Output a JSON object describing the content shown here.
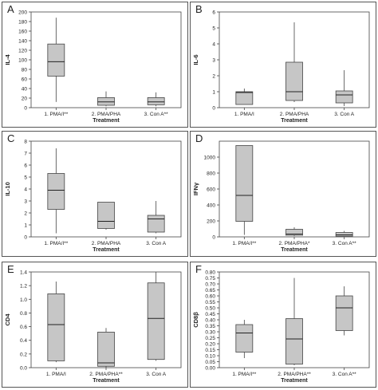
{
  "chart_data": [
    {
      "type": "box",
      "panel_label": "A",
      "ylabel": "IL-4",
      "xlabel": "Treatment",
      "ylim": [
        0,
        200
      ],
      "yticks": [
        0,
        20,
        40,
        60,
        80,
        100,
        120,
        140,
        160,
        180,
        200
      ],
      "categories": [
        "1. PMA/I**",
        "2. PMA/PHA",
        "3. Con A**"
      ],
      "boxes": [
        {
          "min": 12,
          "q1": 66,
          "median": 96,
          "q3": 133,
          "max": 188
        },
        {
          "min": 3,
          "q1": 5,
          "median": 12,
          "q3": 21,
          "max": 34
        },
        {
          "min": 3,
          "q1": 6,
          "median": 12,
          "q3": 21,
          "max": 32
        }
      ]
    },
    {
      "type": "box",
      "panel_label": "B",
      "ylabel": "IL-6",
      "xlabel": "Treatment",
      "ylim": [
        0,
        6
      ],
      "yticks": [
        0,
        1,
        2,
        3,
        4,
        5,
        6
      ],
      "categories": [
        "1. PMA/I",
        "2. PMA/PHA",
        "3. Con A"
      ],
      "boxes": [
        {
          "min": 0.2,
          "q1": 0.2,
          "median": 0.95,
          "q3": 1.0,
          "max": 1.2
        },
        {
          "min": 0.35,
          "q1": 0.45,
          "median": 1.0,
          "q3": 2.85,
          "max": 5.35
        },
        {
          "min": 0.1,
          "q1": 0.3,
          "median": 0.8,
          "q3": 1.05,
          "max": 2.35
        }
      ]
    },
    {
      "type": "box",
      "panel_label": "C",
      "ylabel": "IL-10",
      "xlabel": "Treatment",
      "ylim": [
        0,
        8
      ],
      "yticks": [
        0,
        1,
        2,
        3,
        4,
        5,
        6,
        7,
        8
      ],
      "categories": [
        "1. PMA/I**",
        "2. PMA/PHA",
        "3. Con A"
      ],
      "boxes": [
        {
          "min": 0.3,
          "q1": 2.3,
          "median": 3.9,
          "q3": 5.3,
          "max": 7.4
        },
        {
          "min": 0.6,
          "q1": 0.7,
          "median": 1.3,
          "q3": 2.9,
          "max": 2.9
        },
        {
          "min": 0.3,
          "q1": 0.4,
          "median": 1.5,
          "q3": 1.8,
          "max": 3.0
        }
      ]
    },
    {
      "type": "box",
      "panel_label": "D",
      "ylabel": "IFNγ",
      "xlabel": "Treatment",
      "ylim": [
        0,
        1200
      ],
      "yticks": [
        0,
        200,
        400,
        600,
        800,
        1000
      ],
      "categories": [
        "1. PMA/I**",
        "2. PMA/PHA*",
        "3. Con A**"
      ],
      "boxes": [
        {
          "min": 25,
          "q1": 195,
          "median": 520,
          "q3": 1145,
          "max": 1145
        },
        {
          "min": 10,
          "q1": 20,
          "median": 35,
          "q3": 95,
          "max": 120
        },
        {
          "min": 5,
          "q1": 8,
          "median": 25,
          "q3": 55,
          "max": 75
        }
      ]
    },
    {
      "type": "box",
      "panel_label": "E",
      "ylabel": "CD4",
      "xlabel": "Treatment",
      "ylim": [
        0,
        1.4
      ],
      "yticks": [
        0,
        0.2,
        0.4,
        0.6,
        0.8,
        1.0,
        1.2,
        1.4
      ],
      "categories": [
        "1. PMA/I",
        "2. PMA/PHA**",
        "3. Con A"
      ],
      "boxes": [
        {
          "min": 0.08,
          "q1": 0.1,
          "median": 0.63,
          "q3": 1.08,
          "max": 1.26
        },
        {
          "min": 0.0,
          "q1": 0.02,
          "median": 0.07,
          "q3": 0.52,
          "max": 0.58
        },
        {
          "min": 0.1,
          "q1": 0.12,
          "median": 0.72,
          "q3": 1.24,
          "max": 1.4
        }
      ]
    },
    {
      "type": "box",
      "panel_label": "F",
      "ylabel": "CD8β",
      "xlabel": "Treatment",
      "ylim": [
        0,
        0.8
      ],
      "yticks": [
        0,
        0.05,
        0.1,
        0.15,
        0.2,
        0.25,
        0.3,
        0.35,
        0.4,
        0.45,
        0.5,
        0.55,
        0.6,
        0.65,
        0.7,
        0.75,
        0.8
      ],
      "categories": [
        "1. PMA/I**",
        "2. PMA/PHA**",
        "3. Con A**"
      ],
      "boxes": [
        {
          "min": 0.08,
          "q1": 0.13,
          "median": 0.29,
          "q3": 0.36,
          "max": 0.4
        },
        {
          "min": 0.02,
          "q1": 0.03,
          "median": 0.24,
          "q3": 0.41,
          "max": 0.75
        },
        {
          "min": 0.27,
          "q1": 0.31,
          "median": 0.5,
          "q3": 0.6,
          "max": 0.68
        }
      ]
    }
  ]
}
